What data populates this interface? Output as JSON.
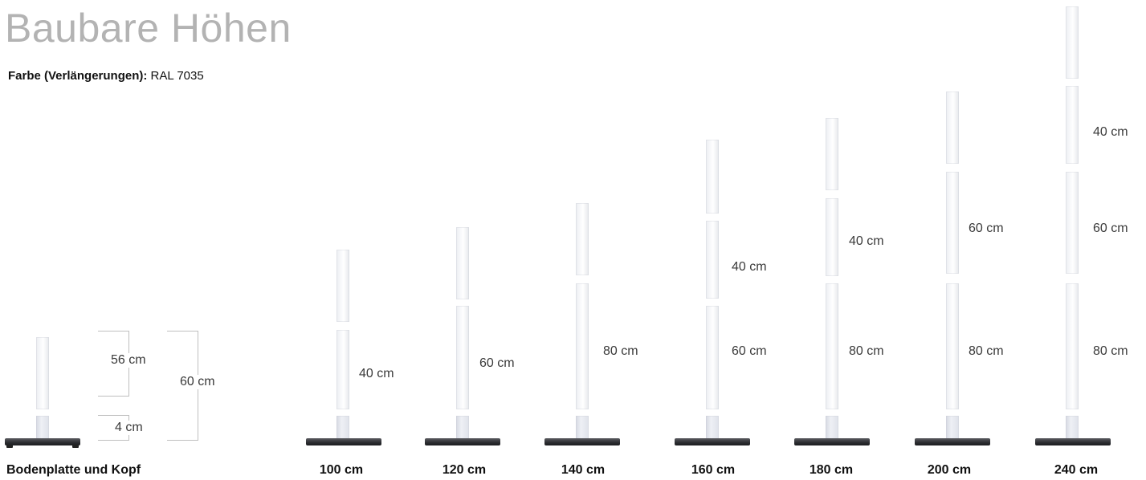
{
  "header": {
    "title": "Baubare Höhen",
    "subtitle_label": "Farbe (Verlängerungen):",
    "subtitle_value": "RAL 7035"
  },
  "base_unit": {
    "caption": "Bodenplatte und Kopf",
    "upper_label": "56 cm",
    "lower_label": "4 cm",
    "total_label": "60 cm"
  },
  "heights": [
    {
      "caption": "100 cm",
      "extensions": [
        "40 cm"
      ]
    },
    {
      "caption": "120 cm",
      "extensions": [
        "60 cm"
      ]
    },
    {
      "caption": "140 cm",
      "extensions": [
        "80 cm"
      ]
    },
    {
      "caption": "160 cm",
      "extensions": [
        "60 cm",
        "40 cm"
      ]
    },
    {
      "caption": "180 cm",
      "extensions": [
        "80 cm",
        "40 cm"
      ]
    },
    {
      "caption": "200 cm",
      "extensions": [
        "80 cm",
        "60 cm"
      ]
    },
    {
      "caption": "240 cm",
      "extensions": [
        "80 cm",
        "60 cm",
        "40 cm"
      ]
    }
  ]
}
